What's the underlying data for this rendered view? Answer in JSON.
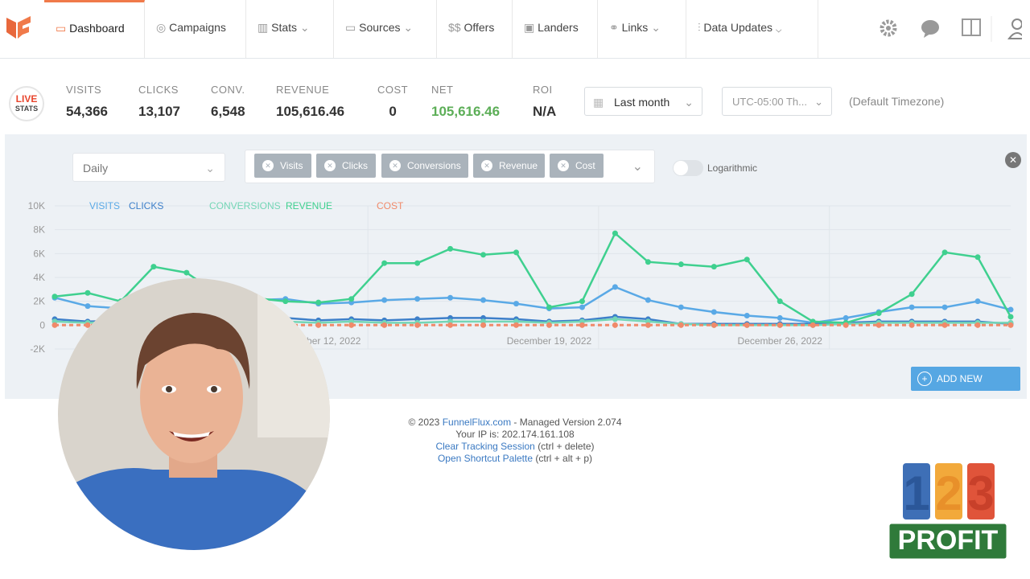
{
  "nav": {
    "items": [
      "Dashboard",
      "Campaigns",
      "Stats",
      "Sources",
      "Offers",
      "Landers",
      "Links",
      "Data Updates"
    ]
  },
  "stats": {
    "badge": [
      "LIVE",
      "STATS"
    ],
    "items": [
      {
        "label": "VISITS",
        "value": "54,366"
      },
      {
        "label": "CLICKS",
        "value": "13,107"
      },
      {
        "label": "CONV.",
        "value": "6,548"
      },
      {
        "label": "REVENUE",
        "value": "105,616.46"
      },
      {
        "label": "COST",
        "value": "0"
      },
      {
        "label": "NET",
        "value": "105,616.46"
      },
      {
        "label": "ROI",
        "value": "N/A"
      }
    ],
    "range": "Last month",
    "timezone": "UTC-05:00 Th...",
    "timezone_note": "(Default Timezone)"
  },
  "controls": {
    "interval": "Daily",
    "chips": [
      "Visits",
      "Clicks",
      "Conversions",
      "Revenue",
      "Cost"
    ],
    "log_label": "Logarithmic",
    "add_widget": "ADD NEW WIDGET"
  },
  "chart_data": {
    "type": "line",
    "categories": [
      null,
      null,
      null,
      null,
      null,
      null,
      null,
      null,
      "December 12, 2022",
      null,
      null,
      null,
      null,
      null,
      null,
      "December 19, 2022",
      null,
      null,
      null,
      null,
      null,
      null,
      "December 26, 2022",
      null,
      null,
      null,
      null,
      null,
      null,
      null
    ],
    "ylim": [
      -2000,
      10000
    ],
    "yticks": [
      {
        "value": -2000,
        "label": "-2K"
      },
      0,
      {
        "value": 2000,
        "label": "2K"
      },
      {
        "value": 4000,
        "label": "4K"
      },
      {
        "value": 6000,
        "label": "6K"
      },
      {
        "value": 8000,
        "label": "8K"
      },
      {
        "value": 10000,
        "label": "10K"
      }
    ],
    "series": [
      {
        "name": "VISITS",
        "color": "#5aa9e6",
        "values": [
          2300,
          1600,
          1400,
          1800,
          2100,
          2200,
          2100,
          2200,
          1800,
          1900,
          2100,
          2200,
          2300,
          2100,
          1800,
          1400,
          1500,
          3200,
          2100,
          1500,
          1100,
          800,
          600,
          200,
          600,
          1100,
          1500,
          1500,
          2000,
          1300
        ]
      },
      {
        "name": "CLICKS",
        "color": "#3d7fc9",
        "values": [
          500,
          300,
          400,
          500,
          600,
          500,
          500,
          600,
          400,
          500,
          400,
          500,
          600,
          600,
          500,
          300,
          400,
          700,
          500,
          100,
          100,
          100,
          100,
          100,
          200,
          300,
          300,
          300,
          300,
          100
        ]
      },
      {
        "name": "CONVERSIONS",
        "color": "#74d6b6",
        "values": [
          300,
          200,
          300,
          300,
          300,
          300,
          300,
          300,
          200,
          300,
          200,
          200,
          300,
          300,
          300,
          200,
          300,
          500,
          300,
          100,
          0,
          0,
          0,
          0,
          100,
          200,
          200,
          200,
          200,
          200
        ]
      },
      {
        "name": "REVENUE",
        "color": "#3fd08f",
        "values": [
          2400,
          2700,
          2000,
          4900,
          4400,
          2500,
          2300,
          2000,
          1900,
          2200,
          5200,
          5200,
          6400,
          5900,
          6100,
          1500,
          2000,
          7700,
          5300,
          5100,
          4900,
          5500,
          2000,
          300,
          200,
          1000,
          2600,
          6100,
          5700,
          700
        ]
      },
      {
        "name": "COST",
        "color": "#f08a6a",
        "dashed": true,
        "values": [
          0,
          0,
          0,
          0,
          0,
          0,
          0,
          0,
          0,
          0,
          0,
          0,
          0,
          0,
          0,
          0,
          0,
          0,
          0,
          0,
          0,
          0,
          0,
          0,
          0,
          0,
          0,
          0,
          0,
          0
        ]
      }
    ],
    "grid": true
  },
  "footer": {
    "copyright": "© 2023",
    "site": "FunnelFlux.com",
    "version": "- Managed Version 2.074",
    "ip": "Your IP is: 202.174.161.108",
    "links": [
      {
        "text": "Clear Tracking Session",
        "hint": "(ctrl + delete)"
      },
      {
        "text": "Open Shortcut Palette",
        "hint": "(ctrl + alt + p)"
      }
    ]
  },
  "logo": {
    "digits": [
      "1",
      "2",
      "3"
    ],
    "word": "PROFIT"
  }
}
